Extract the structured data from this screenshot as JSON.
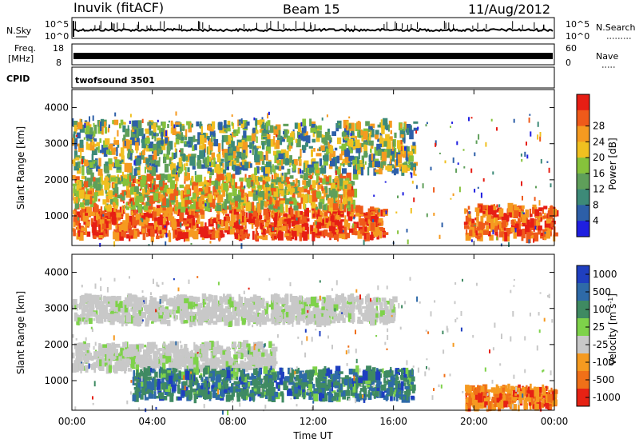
{
  "header": {
    "station": "Inuvik (fitACF)",
    "beam": "Beam 15",
    "date": "11/Aug/2012"
  },
  "strips": {
    "nsky_label": "N.Sky",
    "nsearch_label": "N.Search",
    "freq_label_1": "Freq.",
    "freq_label_2": "[MHz]",
    "nave_label": "Nave",
    "cpid_label": "CPID",
    "cpid_value": "twofsound 3501",
    "noise_left_ticks": [
      "10^5",
      "10^0"
    ],
    "noise_right_ticks": [
      "10^5",
      "10^0"
    ],
    "freq_ticks": [
      "18",
      "8"
    ],
    "nave_ticks": [
      "60",
      "0"
    ]
  },
  "chart_data": [
    {
      "type": "heatmap",
      "title": "",
      "xlabel": "",
      "ylabel": "Slant Range [km]",
      "x_ticks": [
        "00:00",
        "04:00",
        "08:00",
        "12:00",
        "16:00",
        "20:00",
        "00:00"
      ],
      "y_ticks": [
        "1000",
        "2000",
        "3000",
        "4000"
      ],
      "ylim": [
        180,
        4500
      ],
      "xlim_hours": [
        0,
        24
      ],
      "colorbar": {
        "label": "Power [dB]",
        "ticks": [
          "4",
          "8",
          "12",
          "16",
          "20",
          "24",
          "28"
        ],
        "colors": [
          "#1f1fe0",
          "#2d5fa8",
          "#3d8a78",
          "#5f9f5a",
          "#86c23b",
          "#f0c020",
          "#f59a20",
          "#ef5a1a",
          "#e61e14"
        ]
      },
      "features": [
        {
          "name": "near-range high power band",
          "t": [
            0,
            15.5
          ],
          "range": [
            400,
            1200
          ],
          "level": "high"
        },
        {
          "name": "upper scatter band",
          "t": [
            0,
            14
          ],
          "range": [
            1200,
            2100
          ],
          "level": "mid-high"
        },
        {
          "name": "far range patches",
          "t": [
            0,
            17
          ],
          "range": [
            2200,
            3600
          ],
          "level": "mid"
        },
        {
          "name": "late evening echoes",
          "t": [
            19.5,
            24
          ],
          "range": [
            350,
            1250
          ],
          "level": "high"
        }
      ]
    },
    {
      "type": "heatmap",
      "title": "",
      "xlabel": "Time UT",
      "ylabel": "Slant Range [km]",
      "x_ticks": [
        "00:00",
        "04:00",
        "08:00",
        "12:00",
        "16:00",
        "20:00",
        "00:00"
      ],
      "y_ticks": [
        "1000",
        "2000",
        "3000",
        "4000"
      ],
      "ylim": [
        180,
        4500
      ],
      "xlim_hours": [
        0,
        24
      ],
      "colorbar": {
        "label": "Velocity [m s^-1]",
        "ticks": [
          "1000",
          "500",
          "100",
          "25",
          "-25",
          "-100",
          "-500",
          "-1000"
        ],
        "colors": [
          "#1f3fc0",
          "#2e6aa8",
          "#3f8a62",
          "#7ed24a",
          "#c8c8c8",
          "#f59a20",
          "#f07018",
          "#e62214"
        ]
      },
      "features": [
        {
          "name": "ground scatter band",
          "t": [
            0,
            10
          ],
          "range": [
            1300,
            2000
          ],
          "level": "near zero"
        },
        {
          "name": "positive velocity band",
          "t": [
            3,
            17
          ],
          "range": [
            500,
            1300
          ],
          "level": "100 to 1000"
        },
        {
          "name": "far range ground scatter",
          "t": [
            0,
            16
          ],
          "range": [
            2600,
            3300
          ],
          "level": "near zero"
        },
        {
          "name": "negative velocity evening echoes",
          "t": [
            19.5,
            24
          ],
          "range": [
            250,
            800
          ],
          "level": "-100 to -1000"
        }
      ]
    }
  ]
}
